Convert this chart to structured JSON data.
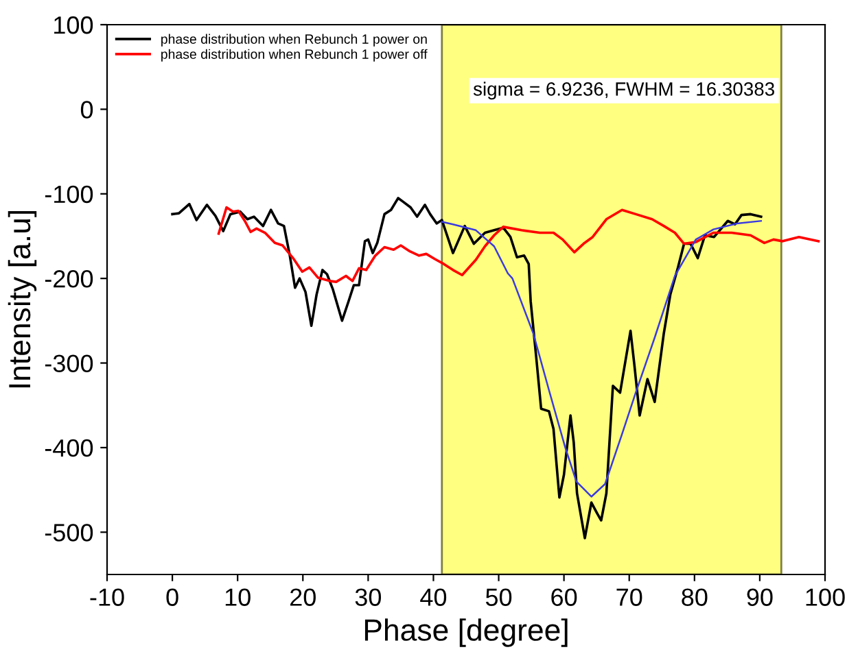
{
  "chart_data": {
    "type": "line",
    "xlabel": "Phase [degree]",
    "ylabel": "Intensity [a.u]",
    "xlim": [
      -10,
      100
    ],
    "ylim": [
      -550,
      100
    ],
    "xticks": [
      -10,
      0,
      10,
      20,
      30,
      40,
      50,
      60,
      70,
      80,
      90,
      100
    ],
    "yticks": [
      -500,
      -400,
      -300,
      -200,
      -100,
      0,
      100
    ],
    "grid": false,
    "legend": "top left",
    "line_style": "solid",
    "marker": "none",
    "bands": [
      {
        "axis": "x",
        "from": 41.3,
        "to": 93.3,
        "color": "#ffff80"
      }
    ],
    "annotations": [
      "sigma = 6.9236, FWHM = 16.30383"
    ],
    "series": [
      {
        "name": "phase distribution when Rebunch 1 power on",
        "color": "#000000",
        "x": [
          0,
          1,
          2.6,
          3.7,
          5.3,
          6.6,
          7.8,
          8.9,
          10.4,
          11.5,
          12.5,
          13.9,
          15.1,
          16.2,
          17.1,
          18,
          18.8,
          19.5,
          20.4,
          21.3,
          22.1,
          23,
          23.7,
          24.6,
          26,
          27,
          27.8,
          28.6,
          29.5,
          30,
          30.7,
          31.4,
          32.5,
          33.5,
          34.6,
          35.3,
          36.5,
          37.5,
          38.7,
          39.5,
          40.5,
          41.3,
          43,
          44.8,
          46.2,
          47.9,
          49.3,
          50.7,
          51.8,
          52.8,
          53.9,
          54.6,
          54.9,
          55.8,
          56.5,
          57.7,
          58.4,
          59.3,
          60,
          61,
          61.5,
          62,
          63.2,
          64.2,
          65.1,
          65.7,
          66.5,
          67.5,
          68.6,
          69.3,
          70.2,
          70.8,
          71.6,
          72.8,
          73.9,
          75.3,
          76.3,
          77.4,
          78.4,
          79.4,
          80.5,
          81.6,
          83,
          85.1,
          86.2,
          87.2,
          88.6,
          90.2
        ],
        "values": [
          -124,
          -123,
          -112,
          -131,
          -113,
          -126,
          -144,
          -124,
          -121,
          -130,
          -127,
          -138,
          -119,
          -135,
          -138,
          -173,
          -211,
          -200,
          -216,
          -256,
          -219,
          -190,
          -195,
          -213,
          -250,
          -227,
          -208,
          -208,
          -156,
          -154,
          -170,
          -158,
          -124,
          -119,
          -105,
          -109,
          -116,
          -127,
          -113,
          -124,
          -135,
          -131,
          -170,
          -138,
          -159,
          -146,
          -143,
          -140,
          -151,
          -175,
          -173,
          -183,
          -227,
          -297,
          -354,
          -357,
          -378,
          -459,
          -432,
          -362,
          -394,
          -454,
          -507,
          -465,
          -478,
          -486,
          -454,
          -327,
          -335,
          -303,
          -262,
          -303,
          -362,
          -319,
          -346,
          -265,
          -219,
          -189,
          -159,
          -159,
          -176,
          -149,
          -151,
          -132,
          -136,
          -125,
          -124,
          -127
        ]
      },
      {
        "name": "phase distribution when Rebunch 1 power off",
        "color": "#ff0000",
        "x": [
          7.1,
          8.3,
          9.3,
          10.1,
          11.1,
          12,
          12.9,
          14.2,
          15.7,
          16.9,
          18.5,
          19.9,
          21,
          22.3,
          24.1,
          25.1,
          26.6,
          27.6,
          28.6,
          29.7,
          31.1,
          32.5,
          33.9,
          35,
          36.4,
          37.8,
          38.9,
          40.2,
          41.6,
          43,
          44.4,
          46.5,
          47.9,
          49.3,
          50.7,
          53.5,
          56.3,
          58.4,
          59.8,
          61.6,
          63,
          64.4,
          66.5,
          68.9,
          71,
          73.5,
          75.3,
          77,
          78.4,
          80.2,
          82.9,
          85.7,
          88.6,
          90.7,
          92.1,
          93.5,
          96,
          99
        ],
        "values": [
          -147,
          -116,
          -121,
          -120,
          -132,
          -145,
          -141,
          -146,
          -158,
          -161,
          -176,
          -192,
          -187,
          -199,
          -203,
          -204,
          -197,
          -203,
          -188,
          -190,
          -173,
          -163,
          -166,
          -161,
          -168,
          -173,
          -171,
          -177,
          -183,
          -190,
          -196,
          -178,
          -162,
          -149,
          -139,
          -143,
          -146,
          -146,
          -154,
          -169,
          -159,
          -151,
          -130,
          -119,
          -124,
          -130,
          -138,
          -146,
          -159,
          -157,
          -146,
          -146,
          -149,
          -158,
          -154,
          -156,
          -151,
          -156
        ]
      },
      {
        "color": "#3a3ae0",
        "x": [
          41.3,
          43,
          46.5,
          49.3,
          51.4,
          52.1,
          55.3,
          57.7,
          60.2,
          61.9,
          64.2,
          66.3,
          68.9,
          71,
          73.9,
          77,
          80.2,
          82.9,
          86.5,
          90.2
        ],
        "values": [
          -133,
          -136,
          -143,
          -162,
          -194,
          -200,
          -265,
          -332,
          -400,
          -440,
          -458,
          -443,
          -384,
          -335,
          -270,
          -197,
          -154,
          -142,
          -135,
          -132
        ]
      }
    ]
  }
}
